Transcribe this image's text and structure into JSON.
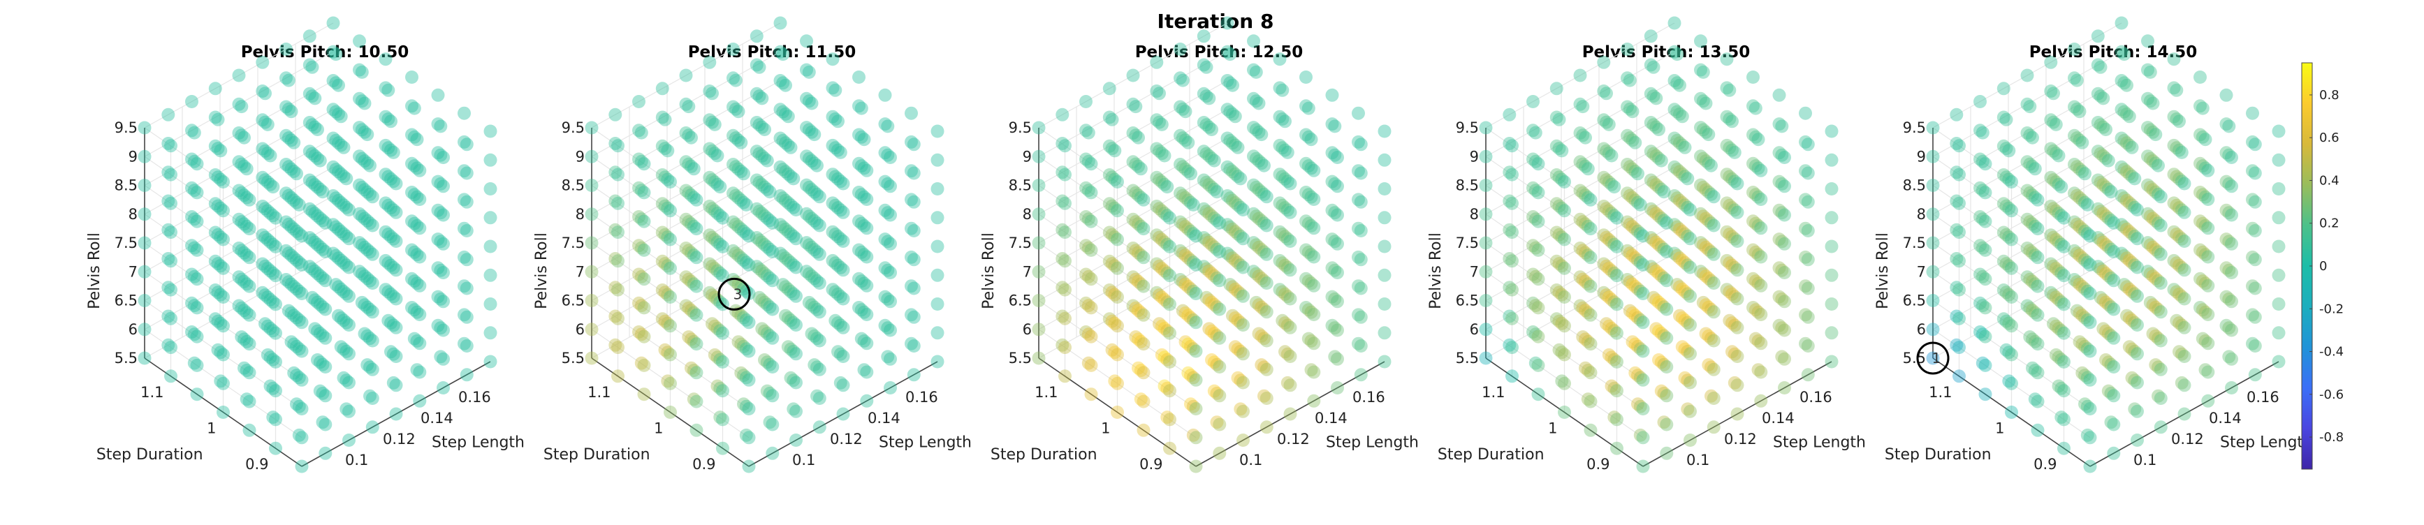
{
  "figure_title": "Iteration 8",
  "colors": {
    "colormap": [
      "#3e26a8",
      "#4a45e0",
      "#3b6ff7",
      "#2193d8",
      "#1caebe",
      "#1dbda8",
      "#4cc18a",
      "#99bd5c",
      "#d8b93a",
      "#fbcb2d",
      "#f9fb14"
    ],
    "axis_line": "#444444",
    "grid": "#e6e6e6",
    "annotation": "#000000"
  },
  "chart_data": [
    {
      "type": "scatter3d",
      "title": "Pelvis Pitch: 10.50",
      "xlabel": "Step Length",
      "ylabel": "Step Duration",
      "zlabel": "Pelvis Roll",
      "x_ticks": [
        "0.1",
        "0.12",
        "0.14",
        "0.16"
      ],
      "y_ticks": [
        "0.9",
        "1",
        "1.1"
      ],
      "z_ticks": [
        "5.5",
        "6",
        "6.5",
        "7",
        "7.5",
        "8",
        "8.5",
        "9",
        "9.5"
      ],
      "xlim": [
        0.08,
        0.18
      ],
      "ylim": [
        0.85,
        1.15
      ],
      "zlim": [
        5.5,
        9.5
      ],
      "grid": [
        9,
        7,
        9
      ],
      "value_model": {
        "base": 0.05,
        "center": [
          0.1,
          0.9,
          5.5
        ],
        "peak": 0.0,
        "spread": 1.0,
        "lowcorner": 0.0
      },
      "annotation": null
    },
    {
      "type": "scatter3d",
      "title": "Pelvis Pitch: 11.50",
      "xlabel": "Step Length",
      "ylabel": "Step Duration",
      "zlabel": "Pelvis Roll",
      "x_ticks": [
        "0.1",
        "0.12",
        "0.14",
        "0.16"
      ],
      "y_ticks": [
        "0.9",
        "1",
        "1.1"
      ],
      "z_ticks": [
        "5.5",
        "6",
        "6.5",
        "7",
        "7.5",
        "8",
        "8.5",
        "9",
        "9.5"
      ],
      "xlim": [
        0.08,
        0.18
      ],
      "ylim": [
        0.85,
        1.15
      ],
      "zlim": [
        5.5,
        9.5
      ],
      "grid": [
        9,
        7,
        9
      ],
      "value_model": {
        "base": 0.05,
        "center": [
          0.1,
          1.1,
          5.8
        ],
        "peak": 0.5,
        "spread": 0.55,
        "lowcorner": 0.0
      },
      "annotation": {
        "label": "3",
        "x": 0.1,
        "y": 0.95,
        "z": 7.5
      }
    },
    {
      "type": "scatter3d",
      "title": "Pelvis Pitch: 12.50",
      "xlabel": "Step Length",
      "ylabel": "Step Duration",
      "zlabel": "Pelvis Roll",
      "x_ticks": [
        "0.1",
        "0.12",
        "0.14",
        "0.16"
      ],
      "y_ticks": [
        "0.9",
        "1",
        "1.1"
      ],
      "z_ticks": [
        "5.5",
        "6",
        "6.5",
        "7",
        "7.5",
        "8",
        "8.5",
        "9",
        "9.5"
      ],
      "xlim": [
        0.08,
        0.18
      ],
      "ylim": [
        0.85,
        1.15
      ],
      "zlim": [
        5.5,
        9.5
      ],
      "grid": [
        9,
        7,
        9
      ],
      "value_model": {
        "base": 0.05,
        "center": [
          0.11,
          1.0,
          5.8
        ],
        "peak": 0.8,
        "spread": 0.6,
        "lowcorner": 0.0
      },
      "annotation": null
    },
    {
      "type": "scatter3d",
      "title": "Pelvis Pitch: 13.50",
      "xlabel": "Step Length",
      "ylabel": "Step Duration",
      "zlabel": "Pelvis Roll",
      "x_ticks": [
        "0.1",
        "0.12",
        "0.14",
        "0.16"
      ],
      "y_ticks": [
        "0.9",
        "1",
        "1.1"
      ],
      "z_ticks": [
        "5.5",
        "6",
        "6.5",
        "7",
        "7.5",
        "8",
        "8.5",
        "9",
        "9.5"
      ],
      "xlim": [
        0.08,
        0.18
      ],
      "ylim": [
        0.85,
        1.15
      ],
      "zlim": [
        5.5,
        9.5
      ],
      "grid": [
        9,
        7,
        9
      ],
      "value_model": {
        "base": 0.05,
        "center": [
          0.13,
          1.0,
          6.2
        ],
        "peak": 0.75,
        "spread": 0.6,
        "lowcorner": -0.35
      },
      "annotation": null
    },
    {
      "type": "scatter3d",
      "title": "Pelvis Pitch: 14.50",
      "xlabel": "Step Length",
      "ylabel": "Step Duration",
      "zlabel": "Pelvis Roll",
      "x_ticks": [
        "0.1",
        "0.12",
        "0.14",
        "0.16"
      ],
      "y_ticks": [
        "0.9",
        "1",
        "1.1"
      ],
      "z_ticks": [
        "5.5",
        "6",
        "6.5",
        "7",
        "7.5",
        "8",
        "8.5",
        "9",
        "9.5"
      ],
      "xlim": [
        0.08,
        0.18
      ],
      "ylim": [
        0.85,
        1.15
      ],
      "zlim": [
        5.5,
        9.5
      ],
      "grid": [
        9,
        7,
        9
      ],
      "value_model": {
        "base": 0.05,
        "center": [
          0.14,
          1.0,
          6.8
        ],
        "peak": 0.55,
        "spread": 0.55,
        "lowcorner": -0.45
      },
      "annotation": {
        "label": "1",
        "x": 0.08,
        "y": 1.15,
        "z": 5.5
      }
    }
  ],
  "colorbar": {
    "range": [
      -0.95,
      0.95
    ],
    "ticks": [
      "0.8",
      "0.6",
      "0.4",
      "0.2",
      "0",
      "-0.2",
      "-0.4",
      "-0.6",
      "-0.8"
    ],
    "tick_values": [
      0.8,
      0.6,
      0.4,
      0.2,
      0,
      -0.2,
      -0.4,
      -0.6,
      -0.8
    ]
  }
}
